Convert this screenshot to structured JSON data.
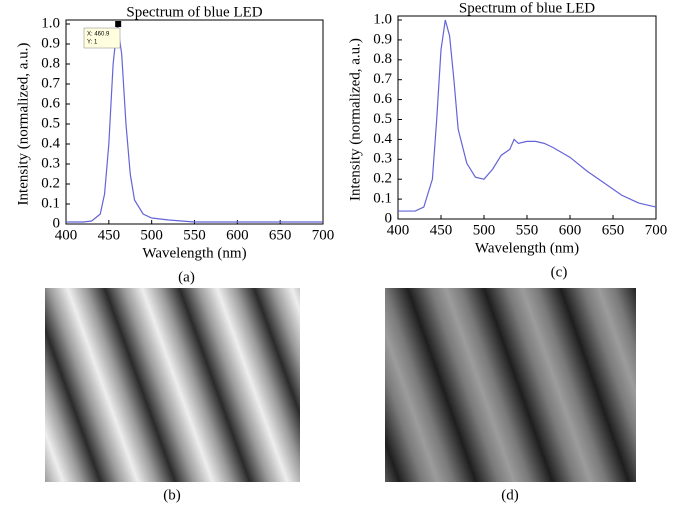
{
  "chart_data": [
    {
      "type": "line",
      "title": "Spectrum of blue LED",
      "xlabel": "Wavelength (nm)",
      "ylabel": "Intensity (normalized, a.u.)",
      "x": [
        400,
        420,
        430,
        440,
        445,
        450,
        455,
        460,
        465,
        470,
        475,
        480,
        490,
        500,
        520,
        550,
        600,
        650,
        700
      ],
      "series": [
        {
          "color": "#6464d8",
          "values": [
            0.01,
            0.01,
            0.015,
            0.05,
            0.15,
            0.4,
            0.8,
            1.0,
            0.85,
            0.5,
            0.25,
            0.12,
            0.05,
            0.03,
            0.02,
            0.01,
            0.01,
            0.01,
            0.01
          ]
        }
      ],
      "xlim": [
        400,
        700
      ],
      "xticks": [
        400,
        450,
        500,
        550,
        600,
        650,
        700
      ],
      "ylim": [
        0,
        1
      ],
      "yticks": [
        0,
        0.1,
        0.2,
        0.3,
        0.4,
        0.5,
        0.6,
        0.7,
        0.8,
        0.9,
        {
          "value": 1,
          "label": "1.0"
        }
      ],
      "datatip": {
        "x": 460.9,
        "y": 1,
        "lines": [
          "X: 460.9",
          "Y: 1"
        ]
      },
      "caption": "(a)"
    },
    {
      "type": "line",
      "title": "Spectrum of blue LED",
      "xlabel": "Wavelength (nm)",
      "ylabel": "Intensity (normalized, a.u.)",
      "x": [
        400,
        420,
        430,
        440,
        445,
        450,
        455,
        460,
        465,
        470,
        480,
        490,
        500,
        510,
        520,
        530,
        535,
        540,
        550,
        560,
        570,
        580,
        600,
        620,
        640,
        660,
        680,
        700
      ],
      "series": [
        {
          "color": "#6464d8",
          "values": [
            0.04,
            0.04,
            0.06,
            0.2,
            0.5,
            0.85,
            1.0,
            0.92,
            0.7,
            0.45,
            0.28,
            0.21,
            0.2,
            0.25,
            0.32,
            0.35,
            0.4,
            0.38,
            0.39,
            0.39,
            0.38,
            0.36,
            0.31,
            0.24,
            0.18,
            0.12,
            0.08,
            0.06
          ]
        }
      ],
      "xlim": [
        400,
        700
      ],
      "xticks": [
        400,
        450,
        500,
        550,
        600,
        650,
        700
      ],
      "ylim": [
        0,
        1
      ],
      "yticks": [
        0,
        0.1,
        0.2,
        0.3,
        0.4,
        0.5,
        0.6,
        0.7,
        0.8,
        0.9,
        {
          "value": 1,
          "label": "1.0"
        }
      ],
      "caption": "(c)"
    }
  ],
  "image_captions": [
    "(b)",
    "(d)"
  ]
}
